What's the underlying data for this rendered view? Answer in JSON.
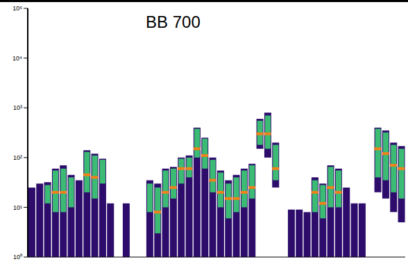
{
  "chart_data": {
    "type": "range_bar",
    "title": "BB 700",
    "log": "y",
    "grid": false,
    "tick_labels": "y",
    "categories": [
      null,
      null,
      null,
      null,
      null,
      null,
      null,
      null,
      null,
      null,
      null,
      null,
      null,
      null,
      null,
      null,
      null,
      null,
      null,
      null,
      null,
      null,
      null,
      null,
      null,
      null,
      null,
      null,
      null,
      null,
      null,
      null,
      null,
      null,
      null,
      null,
      null,
      null,
      null,
      null,
      null,
      null,
      null,
      null,
      null,
      null,
      null,
      null
    ],
    "ylim": [
      1,
      100000
    ],
    "yticks": [
      {
        "value": 1,
        "label": "10⁰"
      },
      {
        "value": 10,
        "label": "10¹"
      },
      {
        "value": 100,
        "label": "10²"
      },
      {
        "value": 1000,
        "label": "10³"
      },
      {
        "value": 10000,
        "label": "10⁴"
      },
      {
        "value": 100000,
        "label": "10⁵"
      }
    ],
    "series": [
      {
        "type": "range",
        "color": "#2d0c6b",
        "low": [
          1,
          1,
          1,
          1,
          1,
          1,
          1,
          1,
          1,
          1,
          1,
          null,
          1,
          null,
          null,
          1,
          1,
          1,
          1,
          1,
          1,
          1,
          1,
          1,
          1,
          1,
          1,
          1,
          1,
          150,
          100,
          25,
          null,
          1,
          1,
          1,
          1,
          1,
          1,
          1,
          1,
          1,
          1,
          null,
          20,
          15,
          8,
          5
        ],
        "high": [
          25,
          30,
          32,
          60,
          70,
          45,
          35,
          140,
          120,
          95,
          12,
          null,
          12,
          null,
          null,
          35,
          30,
          60,
          65,
          100,
          110,
          400,
          250,
          100,
          55,
          35,
          45,
          60,
          75,
          600,
          800,
          200,
          null,
          9,
          9,
          8,
          40,
          30,
          70,
          60,
          25,
          12,
          12,
          null,
          400,
          350,
          200,
          170
        ]
      },
      {
        "type": "range",
        "color": "#3cbb75",
        "low": [
          null,
          null,
          12,
          8,
          8,
          10,
          null,
          20,
          15,
          30,
          null,
          null,
          null,
          null,
          null,
          8,
          3,
          10,
          15,
          30,
          40,
          100,
          60,
          20,
          10,
          6,
          8,
          10,
          15,
          180,
          150,
          35,
          null,
          null,
          null,
          null,
          8,
          6,
          10,
          10,
          null,
          null,
          null,
          null,
          40,
          35,
          20,
          15
        ],
        "high": [
          null,
          null,
          28,
          55,
          60,
          40,
          null,
          130,
          110,
          90,
          null,
          null,
          null,
          null,
          null,
          30,
          25,
          55,
          60,
          95,
          100,
          380,
          240,
          90,
          50,
          30,
          40,
          55,
          70,
          550,
          700,
          180,
          null,
          null,
          null,
          null,
          35,
          28,
          65,
          55,
          null,
          null,
          null,
          null,
          380,
          320,
          180,
          150
        ]
      },
      {
        "type": "marker",
        "color": "#f0801a",
        "values": [
          null,
          null,
          null,
          20,
          20,
          null,
          null,
          45,
          40,
          null,
          null,
          null,
          null,
          null,
          null,
          null,
          8,
          20,
          25,
          60,
          60,
          150,
          110,
          35,
          20,
          15,
          15,
          20,
          25,
          300,
          300,
          60,
          null,
          null,
          null,
          null,
          20,
          12,
          25,
          20,
          null,
          null,
          null,
          null,
          150,
          120,
          70,
          60
        ]
      }
    ]
  }
}
